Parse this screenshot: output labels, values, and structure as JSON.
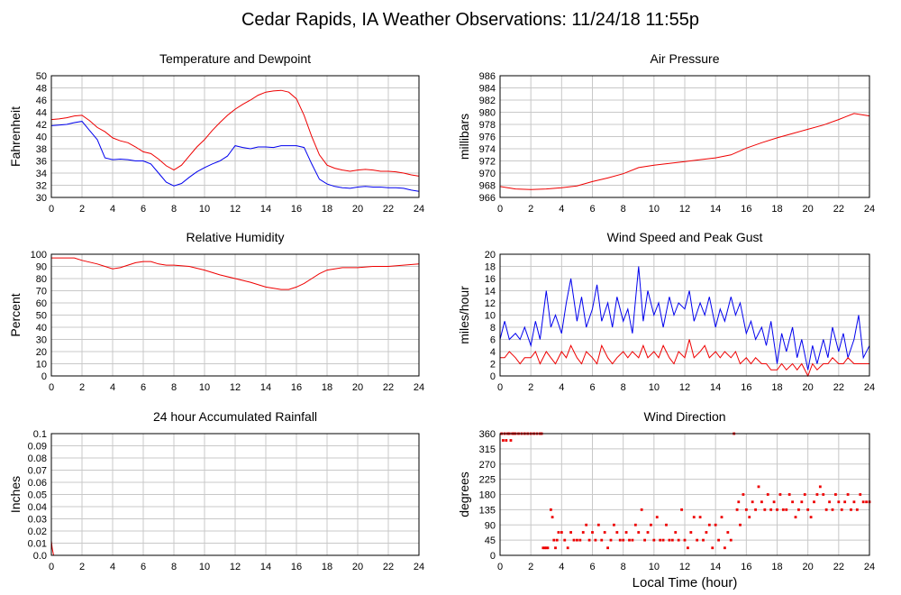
{
  "title": "Cedar Rapids, IA Weather Observations: 11/24/18 11:55p",
  "xlabel": "Local Time (hour)",
  "colors": {
    "red": "#ee0000",
    "blue": "#0000ee"
  },
  "chart_data": [
    {
      "id": "temp",
      "type": "line",
      "title": "Temperature and Dewpoint",
      "ylabel": "Fahrenheit",
      "xlim": [
        0,
        24
      ],
      "ylim": [
        30,
        50
      ],
      "yticks": [
        30,
        32,
        34,
        36,
        38,
        40,
        42,
        44,
        46,
        48,
        50
      ],
      "xticks": [
        0,
        2,
        4,
        6,
        8,
        10,
        12,
        14,
        16,
        18,
        20,
        22,
        24
      ],
      "series": [
        {
          "color": "#ee0000",
          "x": [
            0,
            0.5,
            1,
            1.5,
            2,
            2.5,
            3,
            3.5,
            4,
            4.5,
            5,
            5.5,
            6,
            6.5,
            7,
            7.5,
            8,
            8.5,
            9,
            9.5,
            10,
            10.5,
            11,
            11.5,
            12,
            12.5,
            13,
            13.5,
            14,
            14.5,
            15,
            15.5,
            16,
            16.5,
            17,
            17.5,
            18,
            18.5,
            19,
            19.5,
            20,
            20.5,
            21,
            21.5,
            22,
            22.5,
            23,
            23.5,
            24
          ],
          "y": [
            42.8,
            42.9,
            43.1,
            43.4,
            43.5,
            42.6,
            41.5,
            40.8,
            39.8,
            39.3,
            39.0,
            38.3,
            37.5,
            37.2,
            36.3,
            35.2,
            34.5,
            35.3,
            36.8,
            38.3,
            39.5,
            41.0,
            42.3,
            43.5,
            44.5,
            45.3,
            46.0,
            46.8,
            47.3,
            47.5,
            47.6,
            47.3,
            46.2,
            43.5,
            40.0,
            37.0,
            35.3,
            34.8,
            34.5,
            34.3,
            34.5,
            34.6,
            34.5,
            34.3,
            34.3,
            34.2,
            34.0,
            33.7,
            33.5
          ]
        },
        {
          "color": "#0000ee",
          "x": [
            0,
            0.5,
            1,
            1.5,
            2,
            2.5,
            3,
            3.5,
            4,
            4.5,
            5,
            5.5,
            6,
            6.5,
            7,
            7.5,
            8,
            8.5,
            9,
            9.5,
            10,
            10.5,
            11,
            11.5,
            12,
            12.5,
            13,
            13.5,
            14,
            14.5,
            15,
            15.5,
            16,
            16.5,
            17,
            17.5,
            18,
            18.5,
            19,
            19.5,
            20,
            20.5,
            21,
            21.5,
            22,
            22.5,
            23,
            23.5,
            24
          ],
          "y": [
            41.8,
            41.9,
            42.0,
            42.3,
            42.5,
            41.0,
            39.5,
            36.5,
            36.2,
            36.3,
            36.2,
            36.0,
            36.0,
            35.5,
            34.0,
            32.5,
            31.9,
            32.3,
            33.3,
            34.2,
            34.9,
            35.5,
            36.0,
            36.8,
            38.5,
            38.2,
            38.0,
            38.3,
            38.3,
            38.2,
            38.5,
            38.5,
            38.5,
            38.2,
            35.5,
            33.0,
            32.2,
            31.8,
            31.6,
            31.5,
            31.7,
            31.8,
            31.7,
            31.7,
            31.6,
            31.6,
            31.5,
            31.2,
            31.0
          ]
        }
      ]
    },
    {
      "id": "pressure",
      "type": "line",
      "title": "Air Pressure",
      "ylabel": "millibars",
      "xlim": [
        0,
        24
      ],
      "ylim": [
        966,
        986
      ],
      "yticks": [
        966,
        968,
        970,
        972,
        974,
        976,
        978,
        980,
        982,
        984,
        986
      ],
      "xticks": [
        0,
        2,
        4,
        6,
        8,
        10,
        12,
        14,
        16,
        18,
        20,
        22,
        24
      ],
      "series": [
        {
          "color": "#ee0000",
          "x": [
            0,
            1,
            2,
            3,
            4,
            5,
            6,
            7,
            8,
            9,
            10,
            11,
            12,
            13,
            14,
            15,
            16,
            17,
            18,
            19,
            20,
            21,
            22,
            22.5,
            23,
            23.5,
            24
          ],
          "y": [
            967.8,
            967.4,
            967.3,
            967.4,
            967.6,
            967.9,
            968.6,
            969.2,
            969.9,
            970.9,
            971.3,
            971.6,
            971.9,
            972.2,
            972.5,
            973.0,
            974.1,
            975.0,
            975.8,
            976.5,
            977.2,
            977.9,
            978.8,
            979.3,
            979.8,
            979.6,
            979.4
          ]
        }
      ]
    },
    {
      "id": "rh",
      "type": "line",
      "title": "Relative Humidity",
      "ylabel": "Percent",
      "xlim": [
        0,
        24
      ],
      "ylim": [
        0,
        100
      ],
      "yticks": [
        0,
        10,
        20,
        30,
        40,
        50,
        60,
        70,
        80,
        90,
        100
      ],
      "xticks": [
        0,
        2,
        4,
        6,
        8,
        10,
        12,
        14,
        16,
        18,
        20,
        22,
        24
      ],
      "series": [
        {
          "color": "#ee0000",
          "x": [
            0,
            1,
            1.5,
            2,
            3,
            3.5,
            4,
            4.5,
            5,
            5.5,
            6,
            6.5,
            7,
            7.5,
            8,
            9,
            10,
            11,
            12,
            13,
            14,
            14.5,
            15,
            15.5,
            16,
            16.5,
            17,
            17.5,
            18,
            19,
            20,
            21,
            22,
            23,
            24
          ],
          "y": [
            97,
            97,
            97,
            95,
            92,
            90,
            88,
            89,
            91,
            93,
            94,
            94,
            92,
            91,
            91,
            90,
            87,
            83,
            80,
            77,
            73,
            72,
            71,
            71,
            73,
            76,
            80,
            84,
            87,
            89,
            89,
            90,
            90,
            91,
            92
          ]
        }
      ]
    },
    {
      "id": "wind",
      "type": "line",
      "title": "Wind Speed and Peak Gust",
      "ylabel": "miles/hour",
      "xlim": [
        0,
        24
      ],
      "ylim": [
        0,
        20
      ],
      "yticks": [
        0,
        2,
        4,
        6,
        8,
        10,
        12,
        14,
        16,
        18,
        20
      ],
      "xticks": [
        0,
        2,
        4,
        6,
        8,
        10,
        12,
        14,
        16,
        18,
        20,
        22,
        24
      ],
      "series": [
        {
          "color": "#0000ee",
          "x": [
            0,
            0.3,
            0.6,
            1,
            1.3,
            1.6,
            2,
            2.3,
            2.6,
            3,
            3.3,
            3.6,
            4,
            4.3,
            4.6,
            5,
            5.3,
            5.6,
            6,
            6.3,
            6.6,
            7,
            7.3,
            7.6,
            8,
            8.3,
            8.6,
            9,
            9.3,
            9.6,
            10,
            10.3,
            10.6,
            11,
            11.3,
            11.6,
            12,
            12.3,
            12.6,
            13,
            13.3,
            13.6,
            14,
            14.3,
            14.6,
            15,
            15.3,
            15.6,
            16,
            16.3,
            16.6,
            17,
            17.3,
            17.6,
            18,
            18.3,
            18.6,
            19,
            19.3,
            19.6,
            20,
            20.3,
            20.6,
            21,
            21.3,
            21.6,
            22,
            22.3,
            22.6,
            23,
            23.3,
            23.6,
            24
          ],
          "y": [
            6,
            9,
            6,
            7,
            6,
            8,
            5,
            9,
            6,
            14,
            8,
            10,
            7,
            12,
            16,
            9,
            13,
            8,
            11,
            15,
            9,
            12,
            8,
            13,
            9,
            11,
            7,
            18,
            9,
            14,
            10,
            12,
            8,
            13,
            10,
            12,
            11,
            14,
            9,
            12,
            10,
            13,
            8,
            11,
            9,
            13,
            10,
            12,
            7,
            9,
            6,
            8,
            5,
            9,
            2,
            7,
            4,
            8,
            3,
            6,
            1,
            5,
            2,
            6,
            3,
            8,
            4,
            7,
            3,
            6,
            10,
            3,
            5
          ]
        },
        {
          "color": "#ee0000",
          "x": [
            0,
            0.3,
            0.6,
            1,
            1.3,
            1.6,
            2,
            2.3,
            2.6,
            3,
            3.3,
            3.6,
            4,
            4.3,
            4.6,
            5,
            5.3,
            5.6,
            6,
            6.3,
            6.6,
            7,
            7.3,
            7.6,
            8,
            8.3,
            8.6,
            9,
            9.3,
            9.6,
            10,
            10.3,
            10.6,
            11,
            11.3,
            11.6,
            12,
            12.3,
            12.6,
            13,
            13.3,
            13.6,
            14,
            14.3,
            14.6,
            15,
            15.3,
            15.6,
            16,
            16.3,
            16.6,
            17,
            17.3,
            17.6,
            18,
            18.3,
            18.6,
            19,
            19.3,
            19.6,
            20,
            20.3,
            20.6,
            21,
            21.3,
            21.6,
            22,
            22.3,
            22.6,
            23,
            23.3,
            23.6,
            24
          ],
          "y": [
            3,
            3,
            4,
            3,
            2,
            3,
            3,
            4,
            2,
            4,
            3,
            2,
            4,
            3,
            5,
            3,
            2,
            4,
            3,
            2,
            5,
            3,
            2,
            3,
            4,
            3,
            4,
            3,
            5,
            3,
            4,
            3,
            5,
            3,
            2,
            4,
            3,
            6,
            3,
            4,
            5,
            3,
            4,
            3,
            4,
            3,
            4,
            2,
            3,
            2,
            3,
            2,
            2,
            1,
            1,
            2,
            1,
            2,
            1,
            2,
            0,
            2,
            1,
            2,
            2,
            3,
            2,
            2,
            3,
            2,
            2,
            2,
            2
          ]
        }
      ]
    },
    {
      "id": "rain",
      "type": "line",
      "title": "24 hour Accumulated Rainfall",
      "ylabel": "Inches",
      "xlim": [
        0,
        24
      ],
      "ylim": [
        0,
        0.1
      ],
      "yticks": [
        "0.0",
        "0.01",
        "0.02",
        "0.03",
        "0.04",
        "0.05",
        "0.06",
        "0.07",
        "0.08",
        "0.09",
        "0.1"
      ],
      "xticks": [
        0,
        2,
        4,
        6,
        8,
        10,
        12,
        14,
        16,
        18,
        20,
        22,
        24
      ],
      "series": [
        {
          "color": "#ee0000",
          "x": [
            0,
            0.05,
            0.15,
            24
          ],
          "y": [
            0.012,
            0.006,
            0,
            0
          ]
        }
      ]
    },
    {
      "id": "direction",
      "type": "scatter",
      "title": "Wind Direction",
      "ylabel": "degrees",
      "xlim": [
        0,
        24
      ],
      "ylim": [
        0,
        360
      ],
      "yticks": [
        0,
        45,
        90,
        135,
        180,
        225,
        270,
        315,
        360
      ],
      "xticks": [
        0,
        2,
        4,
        6,
        8,
        10,
        12,
        14,
        16,
        18,
        20,
        22,
        24
      ],
      "series": [
        {
          "color": "#ee0000",
          "x": [
            0.1,
            0.2,
            0.3,
            0.4,
            0.5,
            0.6,
            0.7,
            0.8,
            0.9,
            1.0,
            1.2,
            1.4,
            1.6,
            1.8,
            2.0,
            2.2,
            2.4,
            2.6,
            2.7,
            2.8,
            2.9,
            3.0,
            3.1,
            3.3,
            3.4,
            3.5,
            3.6,
            3.7,
            3.8,
            4.0,
            4.2,
            4.4,
            4.6,
            4.8,
            5.0,
            5.2,
            5.4,
            5.6,
            5.8,
            6.0,
            6.2,
            6.4,
            6.6,
            6.8,
            7.0,
            7.2,
            7.4,
            7.6,
            7.8,
            8.0,
            8.2,
            8.4,
            8.6,
            8.8,
            9.0,
            9.2,
            9.4,
            9.6,
            9.8,
            10.0,
            10.2,
            10.4,
            10.6,
            10.8,
            11.0,
            11.2,
            11.4,
            11.6,
            11.8,
            12.0,
            12.2,
            12.4,
            12.6,
            12.8,
            13.0,
            13.2,
            13.4,
            13.6,
            13.8,
            14.0,
            14.2,
            14.4,
            14.6,
            14.8,
            15.0,
            15.2,
            15.4,
            15.5,
            15.6,
            15.8,
            16.0,
            16.2,
            16.4,
            16.6,
            16.8,
            17.0,
            17.2,
            17.4,
            17.6,
            17.8,
            18.0,
            18.2,
            18.4,
            18.6,
            18.8,
            19.0,
            19.2,
            19.4,
            19.6,
            19.8,
            20.0,
            20.2,
            20.4,
            20.6,
            20.8,
            21.0,
            21.2,
            21.4,
            21.6,
            21.8,
            22.0,
            22.2,
            22.4,
            22.6,
            22.8,
            23.0,
            23.2,
            23.4,
            23.6,
            23.8,
            24.0
          ],
          "y": [
            360,
            340,
            360,
            340,
            360,
            360,
            340,
            360,
            360,
            360,
            360,
            360,
            360,
            360,
            360,
            360,
            360,
            360,
            360,
            22,
            22,
            22,
            22,
            135,
            113,
            45,
            22,
            45,
            68,
            68,
            45,
            22,
            68,
            45,
            45,
            45,
            68,
            90,
            45,
            68,
            45,
            90,
            45,
            68,
            22,
            45,
            90,
            68,
            45,
            45,
            68,
            45,
            45,
            90,
            68,
            135,
            45,
            68,
            90,
            45,
            113,
            45,
            45,
            90,
            45,
            45,
            68,
            45,
            135,
            45,
            22,
            68,
            113,
            45,
            113,
            45,
            68,
            90,
            22,
            90,
            45,
            113,
            22,
            68,
            45,
            360,
            135,
            158,
            90,
            180,
            135,
            113,
            158,
            135,
            203,
            158,
            135,
            180,
            135,
            158,
            135,
            180,
            135,
            135,
            180,
            158,
            113,
            135,
            158,
            180,
            135,
            113,
            158,
            180,
            203,
            180,
            135,
            158,
            135,
            180,
            158,
            135,
            158,
            180,
            135,
            158,
            135,
            180,
            158,
            158,
            158
          ]
        }
      ]
    }
  ]
}
